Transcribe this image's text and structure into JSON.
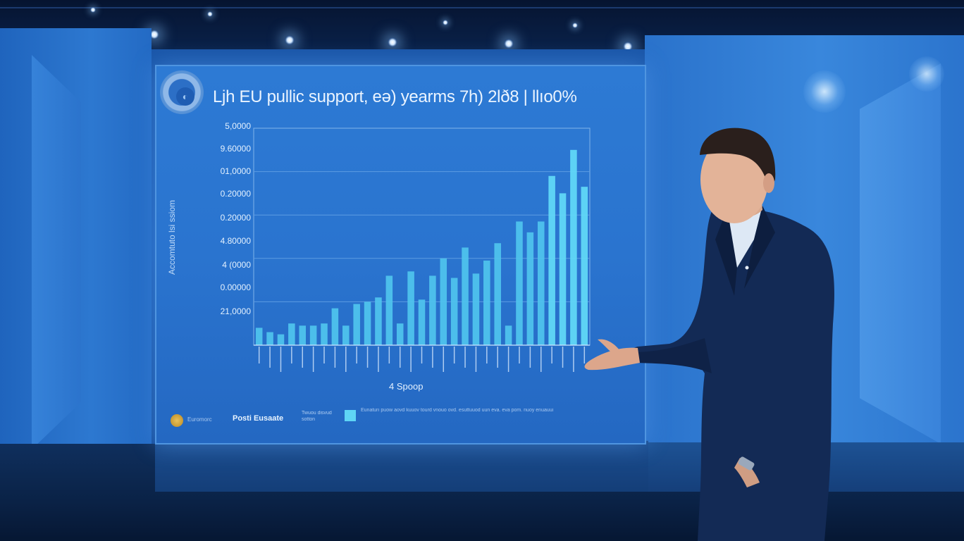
{
  "scene": {
    "description_free": true,
    "colors": {
      "wall": "#1f63bd",
      "screen": "#2a74cf",
      "bar": "#4fcdf0",
      "suit": "#132a55"
    }
  },
  "screen": {
    "title": "Ljh EU pullic support, eə) yearms 7h) 2lð8 | llıo0%",
    "y_axis_title": "Accomtuto lsi ssiom",
    "y_ticks": [
      "5,0000",
      "9.60000",
      "01,0000",
      "0.20000",
      "0.20000",
      "4.80000",
      "4 (0000",
      "0.00000",
      "21,0000"
    ],
    "x_axis_title": "4 Spoop",
    "footer": {
      "small_text": "Euromorc",
      "source": "Posti Eusaate",
      "note": "Twuou disvud sotton",
      "legend_text": "Eunaturı puow aovd kuuov tourd vnouo ovd. esuttuuod uun eva. eva pom. nuoy enuauui"
    }
  },
  "chart_data": {
    "type": "bar",
    "title": "Ljh EU pullic support, eə) yearms 7h) 2lð8 | llıo0%",
    "ylabel": "Accomtuto lsi ssiom",
    "xlabel": "4 Spoop",
    "ylim": [
      0,
      100
    ],
    "grid": true,
    "values": [
      8,
      6,
      5,
      10,
      9,
      9,
      10,
      17,
      9,
      19,
      20,
      22,
      32,
      10,
      34,
      21,
      32,
      40,
      31,
      45,
      33,
      39,
      47,
      9,
      57,
      52,
      57,
      78,
      70,
      90,
      73
    ]
  }
}
